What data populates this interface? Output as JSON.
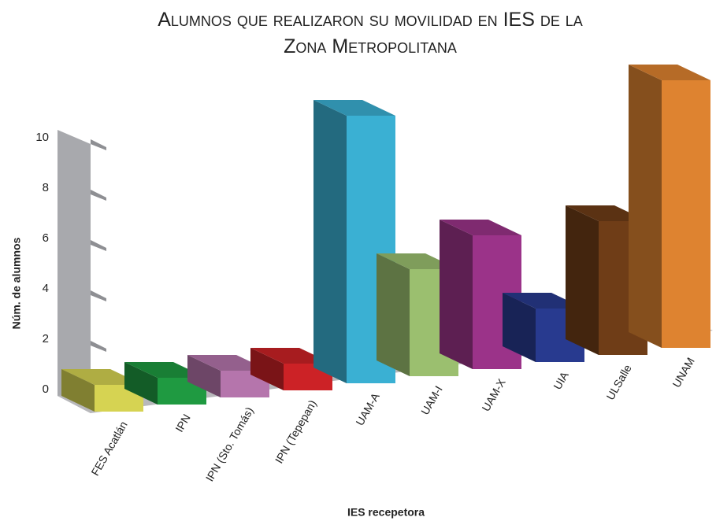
{
  "chart_data": {
    "type": "bar3d",
    "title": "Alumnos que realizaron su movilidad en IES de la Zona Metropolitana",
    "x_label": "IES recepetora",
    "y_label": "Núm. de alumnos",
    "categories": [
      "FES Acatlán",
      "IPN",
      "IPN (Sto. Tomás)",
      "IPN (Tepepan)",
      "UAM-A",
      "UAM-I",
      "UAM-X",
      "UIA",
      "ULSalle",
      "UNAM"
    ],
    "values": [
      1,
      1,
      1,
      1,
      10,
      4,
      5,
      2,
      5,
      10
    ],
    "colors": [
      "#d6d352",
      "#1f9a41",
      "#b575ac",
      "#cc2226",
      "#3ab0d3",
      "#9bbf6f",
      "#9b3389",
      "#283a8f",
      "#6f3d17",
      "#de8330"
    ],
    "ylim": [
      0,
      10
    ],
    "yticks": [
      0,
      2,
      4,
      6,
      8,
      10
    ]
  }
}
